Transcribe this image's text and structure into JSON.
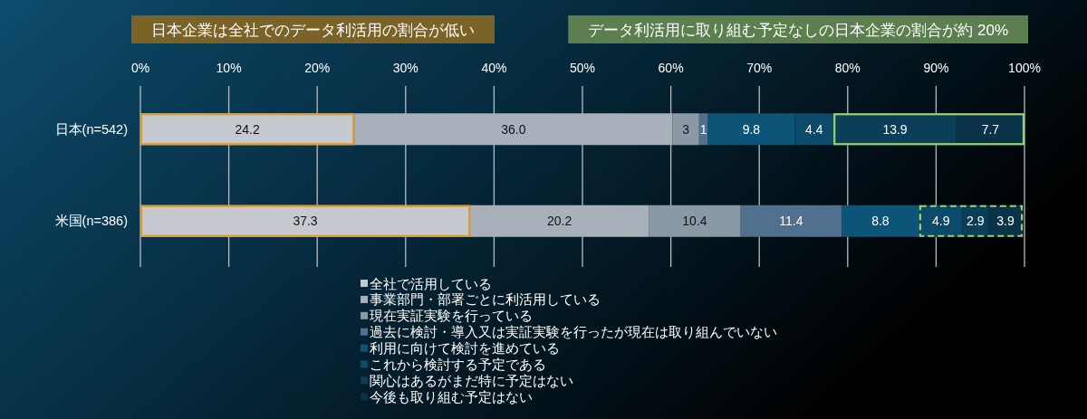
{
  "chart_data": {
    "type": "bar",
    "orientation": "horizontal",
    "stacked": true,
    "categories": [
      "日本(n=542)",
      "米国(n=386)"
    ],
    "series": [
      {
        "name": "全社で活用している",
        "color": "#c6cad0",
        "values": [
          24.2,
          37.3
        ],
        "value_labels": [
          "24.2",
          "37.3"
        ]
      },
      {
        "name": "事業部門・部署ごとに利活用している",
        "color": "#a8b0ba",
        "values": [
          36.0,
          20.2
        ],
        "value_labels": [
          "36.0",
          "20.2"
        ]
      },
      {
        "name": "現在実証実験を行っている",
        "color": "#8b98a6",
        "values": [
          3,
          10.4
        ],
        "value_labels": [
          "3",
          "10.4"
        ]
      },
      {
        "name": "過去に検討・導入又は実証実験を行ったが現在は取り組んでいない",
        "color": "#50708d",
        "values": [
          1,
          11.4
        ],
        "value_labels": [
          "1",
          "11.4"
        ]
      },
      {
        "name": "利用に向けて検討を進めている",
        "color": "#0d5578",
        "values": [
          9.8,
          8.8
        ],
        "value_labels": [
          "9.8",
          "8.8"
        ]
      },
      {
        "name": "これから検討する予定である",
        "color": "#0b4a6a",
        "values": [
          4.4,
          4.9
        ],
        "value_labels": [
          "4.4",
          "4.9"
        ]
      },
      {
        "name": "関心はあるがまだ特に予定はない",
        "color": "#0a3e59",
        "values": [
          13.9,
          2.9
        ],
        "value_labels": [
          "13.9",
          "2.9"
        ]
      },
      {
        "name": "今後も取り組む予定はない",
        "color": "#0a3249",
        "values": [
          7.7,
          3.9
        ],
        "value_labels": [
          "7.7",
          "3.9"
        ]
      }
    ],
    "xlim": [
      0,
      100
    ],
    "xticks": [
      {
        "value": 0,
        "label": "0%"
      },
      {
        "value": 10,
        "label": "10%"
      },
      {
        "value": 20,
        "label": "20%"
      },
      {
        "value": 30,
        "label": "30%"
      },
      {
        "value": 40,
        "label": "40%"
      },
      {
        "value": 50,
        "label": "50%"
      },
      {
        "value": 60,
        "label": "60%"
      },
      {
        "value": 70,
        "label": "70%"
      },
      {
        "value": 80,
        "label": "80%"
      },
      {
        "value": 90,
        "label": "90%"
      },
      {
        "value": 100,
        "label": "100%"
      }
    ],
    "grid": "x",
    "legend": "bottom",
    "annotations": [
      "日本企業は全社でのデータ利活用の割合が低い",
      "データ利活用に取り組む予定なしの日本企業の割合が約 20%"
    ]
  }
}
